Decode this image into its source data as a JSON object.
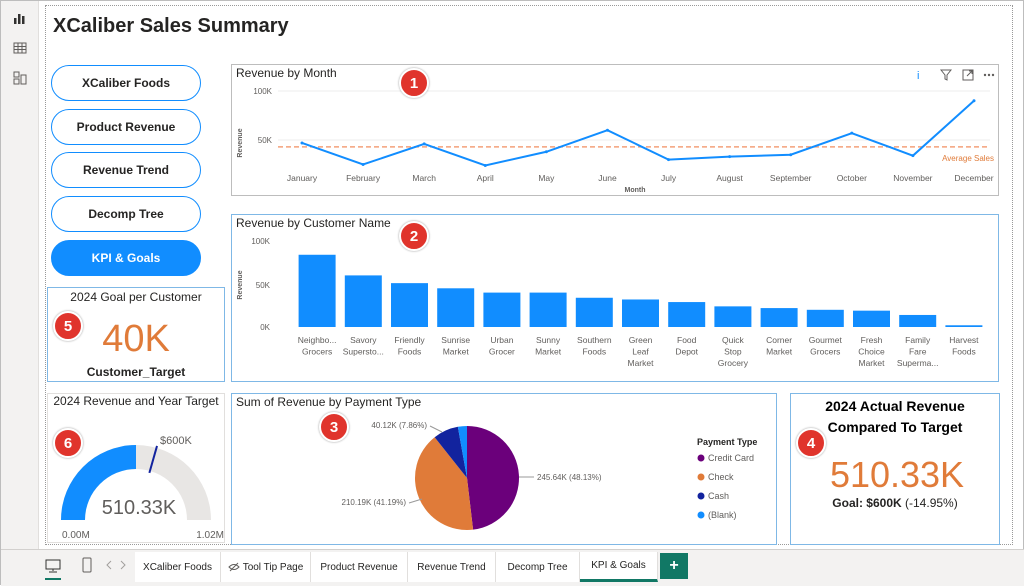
{
  "app": {
    "title": "XCaliber Sales Summary"
  },
  "leftbar": {
    "icons": [
      "report-view-icon",
      "table-view-icon",
      "model-view-icon"
    ]
  },
  "nav_buttons": [
    {
      "label": "XCaliber Foods",
      "active": false
    },
    {
      "label": "Product Revenue",
      "active": false
    },
    {
      "label": "Revenue Trend",
      "active": false
    },
    {
      "label": "Decomp Tree",
      "active": false
    },
    {
      "label": "KPI & Goals",
      "active": true
    }
  ],
  "badges": [
    "1",
    "2",
    "3",
    "4",
    "5",
    "6"
  ],
  "colors": {
    "accent": "#118dff",
    "kpi_orange": "#e07b39",
    "average_line": "#f4a07a",
    "gauge_fill": "#118dff",
    "gauge_bg": "#e8e6e4"
  },
  "revenue_by_month": {
    "title": "Revenue by Month",
    "xlabel": "Month",
    "ylabel": "Revenue",
    "average_label": "Average Sales",
    "ticks": [
      "100K",
      "50K"
    ]
  },
  "revenue_by_customer": {
    "title": "Revenue by Customer Name",
    "ylabel": "Revenue",
    "ticks": [
      "100K",
      "50K",
      "0K"
    ]
  },
  "payment_type": {
    "title": "Sum of Revenue by Payment Type",
    "legend_title": "Payment Type",
    "label_credit": "245.64K (48.13%)",
    "label_check": "210.19K (41.19%)",
    "label_cash": "40.12K (7.86%)"
  },
  "goal_per_customer": {
    "title": "2024 Goal per Customer",
    "value": "40K",
    "label": "Customer_Target"
  },
  "gauge": {
    "title": "2024 Revenue and Year Target",
    "value": "510.33K",
    "target": "$600K",
    "min": "0.00M",
    "max": "1.02M",
    "fraction": 0.5
  },
  "actual_vs_target": {
    "title_line1": "2024 Actual Revenue",
    "title_line2": "Compared To Target",
    "value": "510.33K",
    "goal_label": "Goal: $600K",
    "goal_delta": "(-14.95%)"
  },
  "tabs": [
    {
      "label": "XCaliber Foods",
      "active": false
    },
    {
      "label": "Tool Tip Page",
      "active": false
    },
    {
      "label": "Product Revenue",
      "active": false
    },
    {
      "label": "Revenue Trend",
      "active": false
    },
    {
      "label": "Decomp Tree",
      "active": false
    },
    {
      "label": "KPI & Goals",
      "active": true
    }
  ],
  "add_tab_label": "+",
  "chart_data": [
    {
      "type": "line",
      "title": "Revenue by Month",
      "xlabel": "Month",
      "ylabel": "Revenue",
      "categories": [
        "January",
        "February",
        "March",
        "April",
        "May",
        "June",
        "July",
        "August",
        "September",
        "October",
        "November",
        "December"
      ],
      "values": [
        47000,
        25000,
        46000,
        24000,
        38000,
        60000,
        30000,
        33000,
        35000,
        57000,
        34000,
        90000
      ],
      "average": 43000,
      "ylim": [
        0,
        100000
      ]
    },
    {
      "type": "bar",
      "title": "Revenue by Customer Name",
      "ylabel": "Revenue",
      "categories": [
        "Neighbo... Grocers",
        "Savory Supersto...",
        "Friendly Foods",
        "Sunrise Market",
        "Urban Grocer",
        "Sunny Market",
        "Southern Foods",
        "Green Leaf Market",
        "Food Depot",
        "Quick Stop Grocery",
        "Corner Market",
        "Gourmet Grocers",
        "Fresh Choice Market",
        "Family Fare Superma...",
        "Harvest Foods"
      ],
      "values": [
        84000,
        60000,
        51000,
        45000,
        40000,
        40000,
        34000,
        32000,
        29000,
        24000,
        22000,
        20000,
        19000,
        14000,
        2000
      ],
      "ylim": [
        0,
        100000
      ]
    },
    {
      "type": "pie",
      "title": "Sum of Revenue by Payment Type",
      "legend_title": "Payment Type",
      "categories": [
        "Credit Card",
        "Check",
        "Cash",
        "(Blank)"
      ],
      "values": [
        245.64,
        210.19,
        40.12,
        14.37
      ],
      "colors": [
        "#6b007b",
        "#e07b39",
        "#12239e",
        "#118dff"
      ],
      "legend": "right"
    }
  ]
}
